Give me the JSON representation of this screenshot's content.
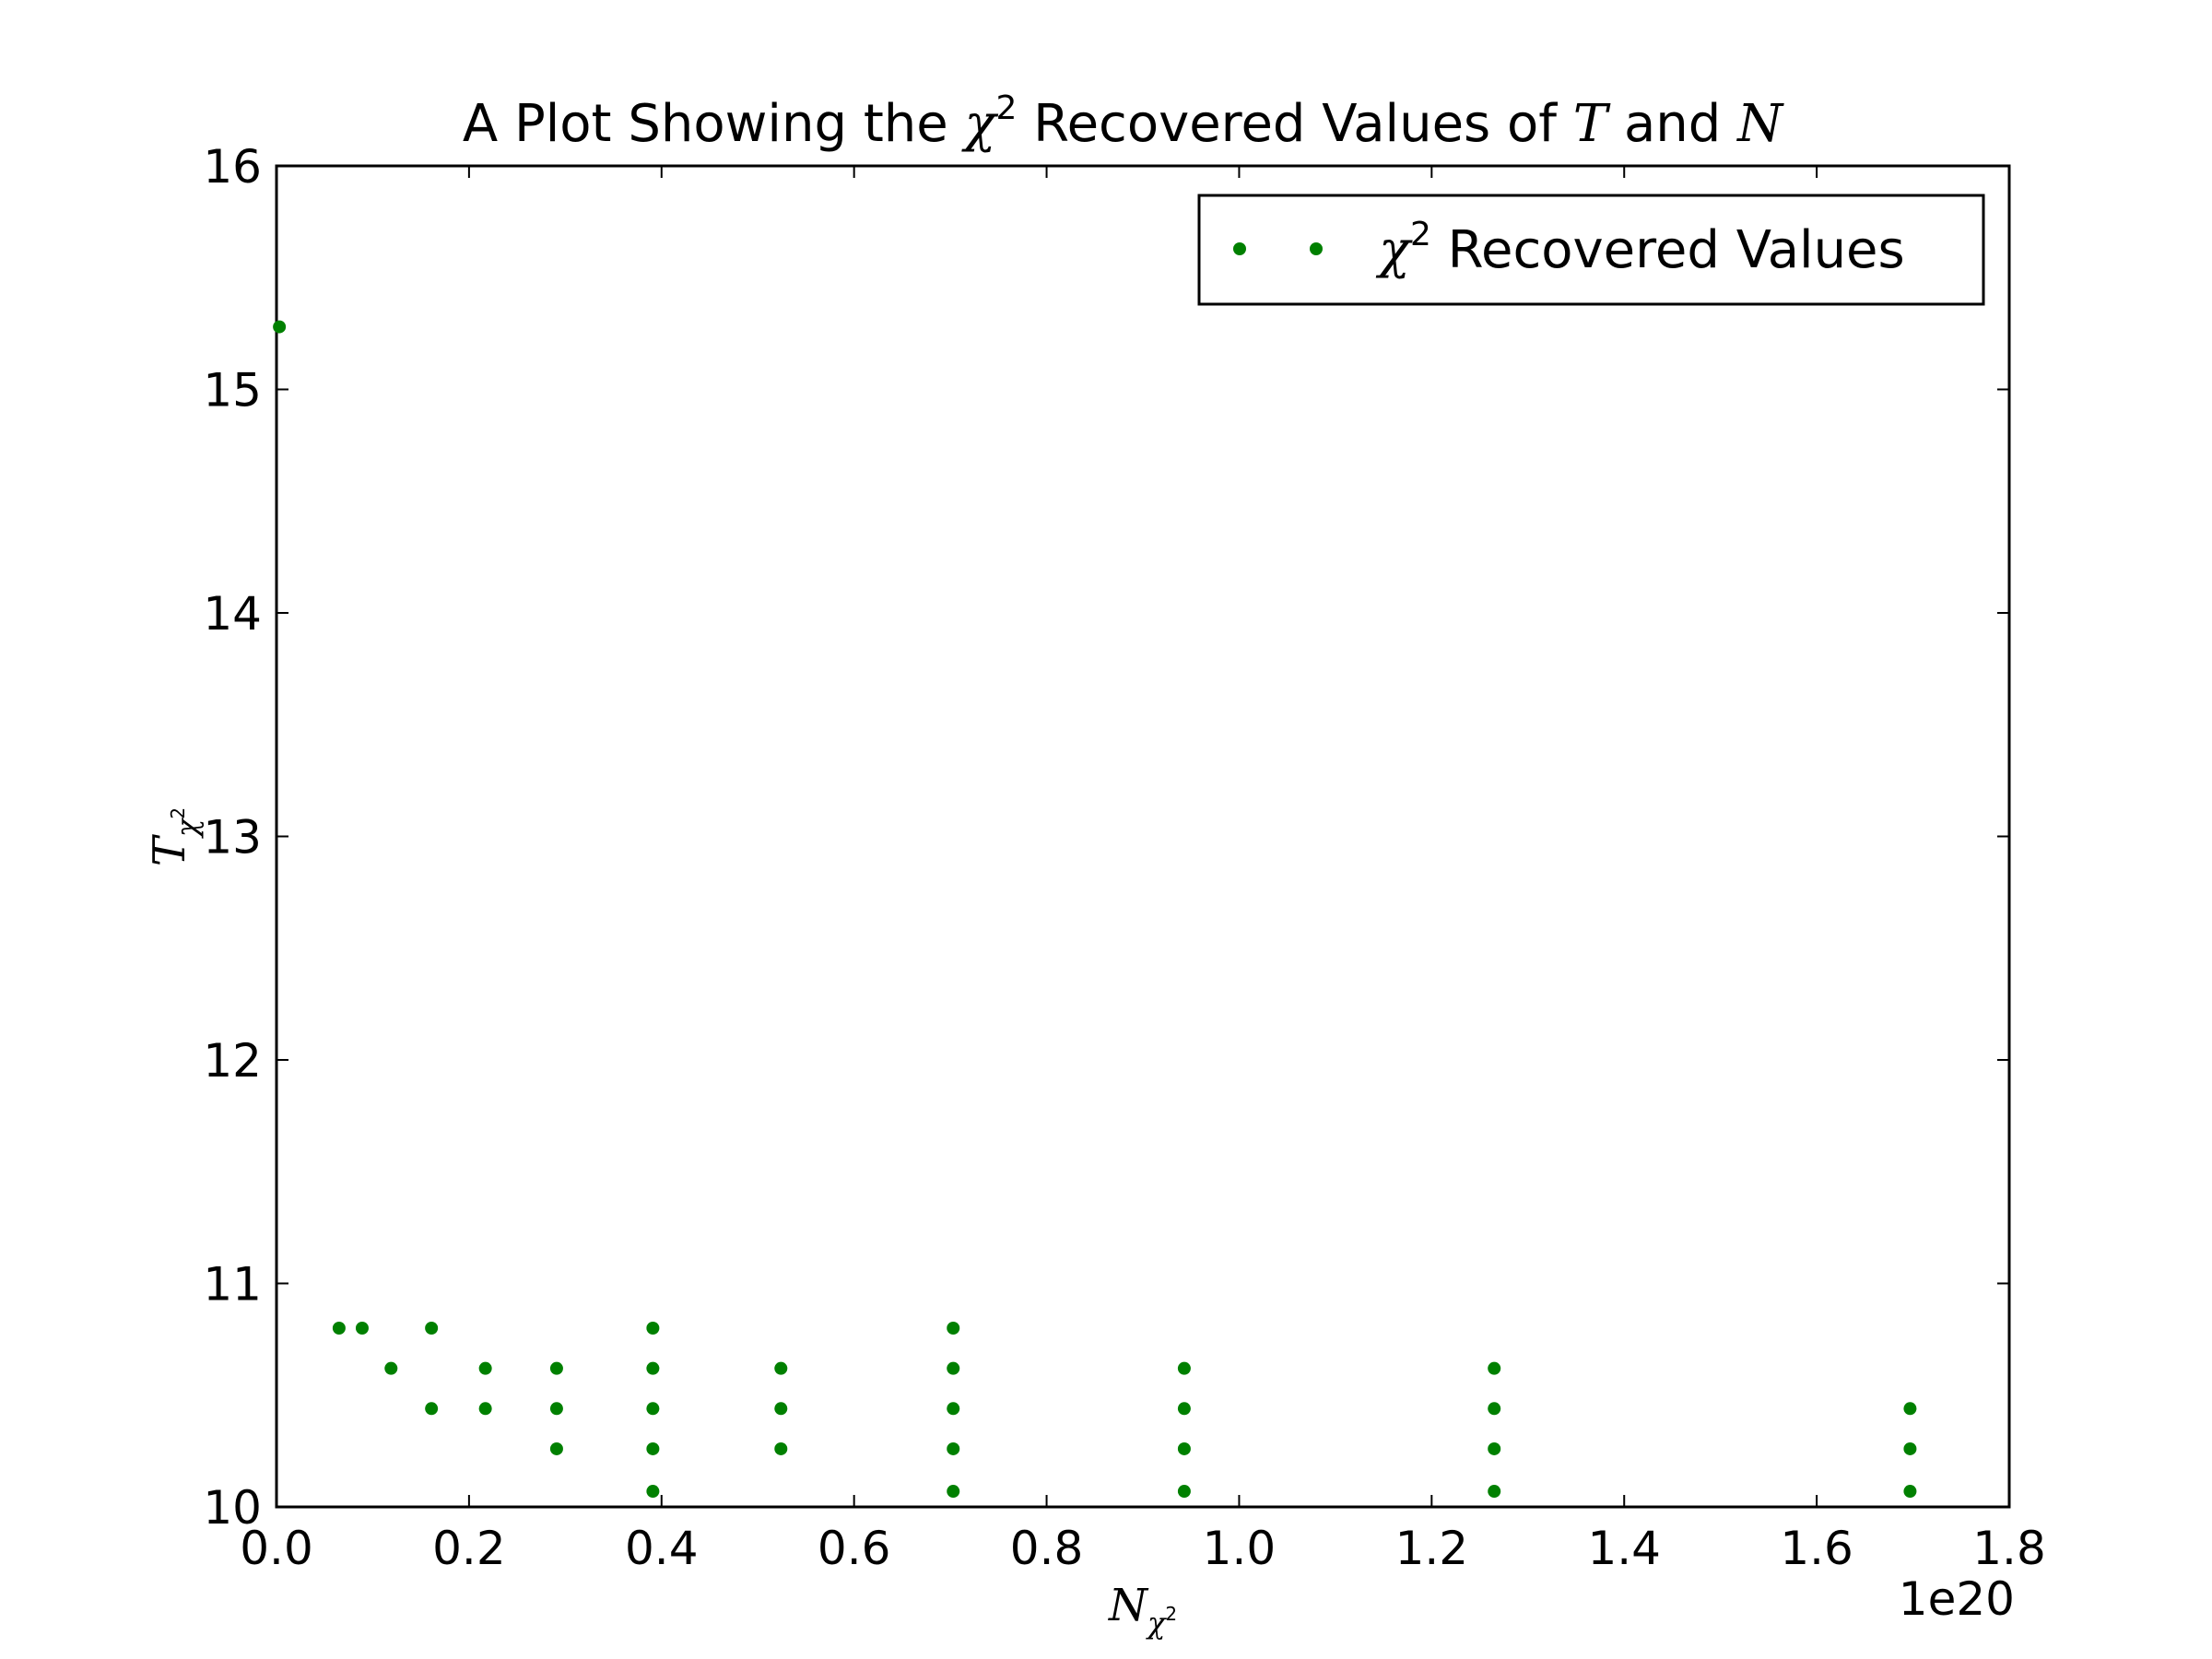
{
  "chart_data": {
    "type": "scatter",
    "title": {
      "pre": "A Plot Showing the ",
      "chi": "χ",
      "sup": "2",
      "mid": " Recovered Values of ",
      "var1": "T",
      "and": " and ",
      "var2": "N"
    },
    "xlabel": {
      "base": "N",
      "sub": "χ",
      "subsup": "2"
    },
    "ylabel": {
      "base": "T",
      "sub": "χ",
      "subsup": "2"
    },
    "x_offset_text": "1e20",
    "x_scale_exponent": 20,
    "xlim": [
      0.0,
      1.8
    ],
    "ylim": [
      10,
      16
    ],
    "x_ticks": [
      "0.0",
      "0.2",
      "0.4",
      "0.6",
      "0.8",
      "1.0",
      "1.2",
      "1.4",
      "1.6",
      "1.8"
    ],
    "y_ticks": [
      "10",
      "11",
      "12",
      "13",
      "14",
      "15",
      "16"
    ],
    "grid": false,
    "legend": {
      "position": "upper right",
      "chi": "χ",
      "sup": "2",
      "text": " Recovered Values"
    },
    "marker_color": "#008000",
    "series": [
      {
        "points": [
          [
            0.003,
            15.28
          ],
          [
            0.065,
            10.8
          ],
          [
            0.089,
            10.8
          ],
          [
            0.119,
            10.62
          ],
          [
            0.161,
            10.8
          ],
          [
            0.161,
            10.44
          ],
          [
            0.217,
            10.62
          ],
          [
            0.217,
            10.44
          ],
          [
            0.291,
            10.62
          ],
          [
            0.291,
            10.44
          ],
          [
            0.291,
            10.26
          ],
          [
            0.391,
            10.8
          ],
          [
            0.391,
            10.62
          ],
          [
            0.391,
            10.44
          ],
          [
            0.391,
            10.26
          ],
          [
            0.391,
            10.07
          ],
          [
            0.524,
            10.62
          ],
          [
            0.524,
            10.44
          ],
          [
            0.524,
            10.26
          ],
          [
            0.703,
            10.8
          ],
          [
            0.703,
            10.62
          ],
          [
            0.703,
            10.44
          ],
          [
            0.703,
            10.26
          ],
          [
            0.703,
            10.07
          ],
          [
            0.943,
            10.62
          ],
          [
            0.943,
            10.44
          ],
          [
            0.943,
            10.26
          ],
          [
            0.943,
            10.07
          ],
          [
            1.265,
            10.62
          ],
          [
            1.265,
            10.44
          ],
          [
            1.265,
            10.26
          ],
          [
            1.265,
            10.07
          ],
          [
            1.697,
            10.44
          ],
          [
            1.697,
            10.26
          ],
          [
            1.697,
            10.07
          ]
        ]
      }
    ]
  }
}
